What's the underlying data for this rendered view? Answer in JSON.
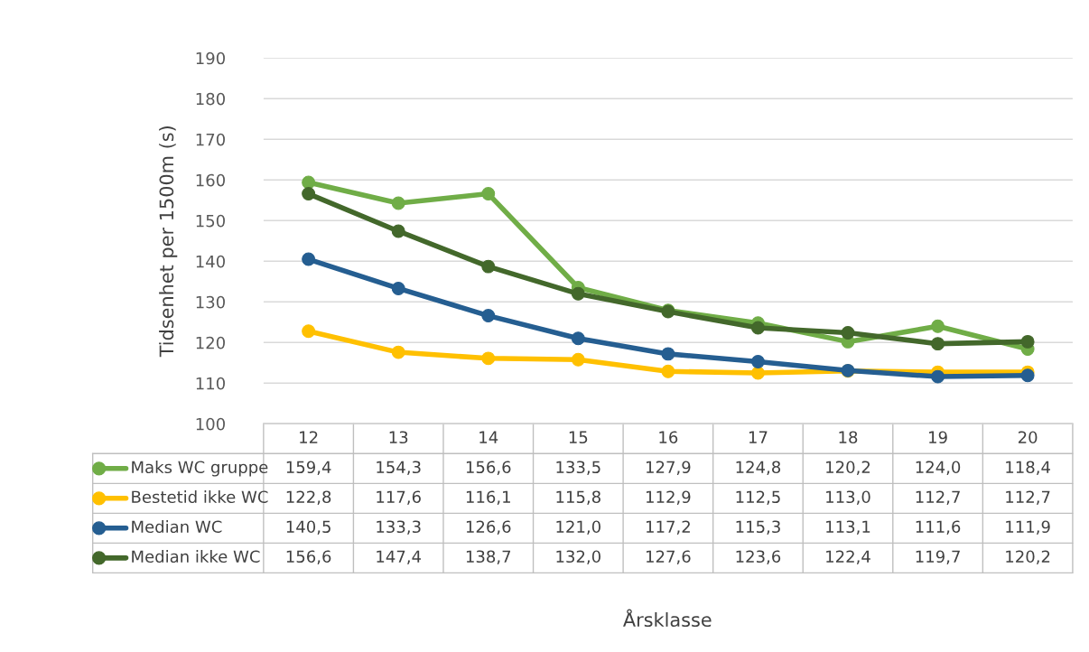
{
  "chart_data": {
    "type": "line",
    "ylabel": "Tidsenhet per 1500m (s)",
    "annotations": [
      "Årsklasse"
    ],
    "categories": [
      "12",
      "13",
      "14",
      "15",
      "16",
      "17",
      "18",
      "19",
      "20"
    ],
    "series": [
      {
        "name": "Maks WC gruppe",
        "color": "#70ad47",
        "values": [
          159.4,
          154.3,
          156.6,
          133.5,
          127.9,
          124.8,
          120.2,
          124.0,
          118.4
        ],
        "value_labels": [
          "159,4",
          "154,3",
          "156,6",
          "133,5",
          "127,9",
          "124,8",
          "120,2",
          "124,0",
          "118,4"
        ]
      },
      {
        "name": "Bestetid ikke WC",
        "color": "#ffc000",
        "values": [
          122.8,
          117.6,
          116.1,
          115.8,
          112.9,
          112.5,
          113.0,
          112.7,
          112.7
        ],
        "value_labels": [
          "122,8",
          "117,6",
          "116,1",
          "115,8",
          "112,9",
          "112,5",
          "113,0",
          "112,7",
          "112,7"
        ]
      },
      {
        "name": "Median WC",
        "color": "#255e91",
        "values": [
          140.5,
          133.3,
          126.6,
          121.0,
          117.2,
          115.3,
          113.1,
          111.6,
          111.9
        ],
        "value_labels": [
          "140,5",
          "133,3",
          "126,6",
          "121,0",
          "117,2",
          "115,3",
          "113,1",
          "111,6",
          "111,9"
        ]
      },
      {
        "name": "Median ikke WC",
        "color": "#43682b",
        "values": [
          156.6,
          147.4,
          138.7,
          132.0,
          127.6,
          123.6,
          122.4,
          119.7,
          120.2
        ],
        "value_labels": [
          "156,6",
          "147,4",
          "138,7",
          "132,0",
          "127,6",
          "123,6",
          "122,4",
          "119,7",
          "120,2"
        ]
      }
    ],
    "ylim": [
      100,
      190
    ],
    "yticks": [
      100,
      110,
      120,
      130,
      140,
      150,
      160,
      170,
      180,
      190
    ],
    "grid": "y",
    "marker": "circle",
    "line_style": "solid",
    "legend": "bottom"
  }
}
